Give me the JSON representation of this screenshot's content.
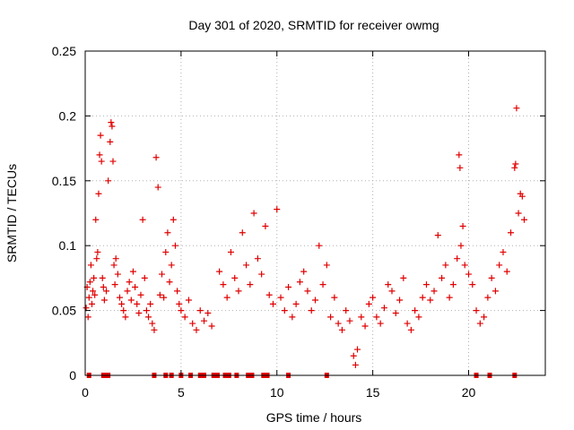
{
  "chart_data": {
    "type": "scatter",
    "title": "Day 301 of 2020, SRMTID for receiver owmg",
    "xlabel": "GPS time / hours",
    "ylabel": "SRMTID / TECUs",
    "xlim": [
      0,
      24
    ],
    "ylim": [
      0,
      0.25
    ],
    "xticks": [
      0,
      5,
      10,
      15,
      20
    ],
    "xtick_labels": [
      "0",
      "5",
      "10",
      "15",
      "20"
    ],
    "yticks": [
      0,
      0.05,
      0.1,
      0.15,
      0.2,
      0.25
    ],
    "ytick_labels": [
      "0",
      "0.05",
      "0.1",
      "0.15",
      "0.2",
      "0.25"
    ],
    "grid": true,
    "marker": "+",
    "marker_color": "#e00000",
    "series": [
      {
        "name": "SRMTID",
        "points": [
          [
            0.05,
            0.052
          ],
          [
            0.1,
            0.068
          ],
          [
            0.15,
            0.045
          ],
          [
            0.2,
            0.06
          ],
          [
            0.25,
            0.072
          ],
          [
            0.3,
            0.085
          ],
          [
            0.35,
            0.055
          ],
          [
            0.4,
            0.065
          ],
          [
            0.45,
            0.075
          ],
          [
            0.5,
            0.062
          ],
          [
            0.55,
            0.12
          ],
          [
            0.6,
            0.09
          ],
          [
            0.65,
            0.095
          ],
          [
            0.7,
            0.14
          ],
          [
            0.75,
            0.17
          ],
          [
            0.8,
            0.185
          ],
          [
            0.85,
            0.165
          ],
          [
            0.9,
            0.075
          ],
          [
            0.95,
            0.068
          ],
          [
            1.0,
            0.058
          ],
          [
            1.1,
            0.065
          ],
          [
            1.2,
            0.15
          ],
          [
            1.3,
            0.18
          ],
          [
            1.35,
            0.195
          ],
          [
            1.4,
            0.192
          ],
          [
            1.45,
            0.165
          ],
          [
            1.5,
            0.085
          ],
          [
            1.55,
            0.07
          ],
          [
            1.6,
            0.09
          ],
          [
            1.7,
            0.078
          ],
          [
            1.8,
            0.06
          ],
          [
            1.9,
            0.055
          ],
          [
            2.0,
            0.05
          ],
          [
            2.1,
            0.045
          ],
          [
            2.2,
            0.065
          ],
          [
            2.3,
            0.072
          ],
          [
            2.4,
            0.058
          ],
          [
            2.5,
            0.08
          ],
          [
            2.6,
            0.068
          ],
          [
            2.7,
            0.055
          ],
          [
            2.8,
            0.048
          ],
          [
            2.9,
            0.062
          ],
          [
            3.0,
            0.12
          ],
          [
            3.1,
            0.075
          ],
          [
            3.2,
            0.05
          ],
          [
            3.3,
            0.045
          ],
          [
            3.4,
            0.055
          ],
          [
            3.5,
            0.04
          ],
          [
            3.6,
            0.035
          ],
          [
            3.7,
            0.168
          ],
          [
            3.8,
            0.145
          ],
          [
            3.9,
            0.062
          ],
          [
            4.0,
            0.078
          ],
          [
            4.1,
            0.06
          ],
          [
            4.2,
            0.095
          ],
          [
            4.3,
            0.11
          ],
          [
            4.4,
            0.072
          ],
          [
            4.5,
            0.085
          ],
          [
            4.6,
            0.12
          ],
          [
            4.7,
            0.1
          ],
          [
            4.8,
            0.065
          ],
          [
            4.9,
            0.055
          ],
          [
            5.0,
            0.05
          ],
          [
            5.2,
            0.045
          ],
          [
            5.4,
            0.058
          ],
          [
            5.6,
            0.04
          ],
          [
            5.8,
            0.035
          ],
          [
            6.0,
            0.05
          ],
          [
            6.2,
            0.042
          ],
          [
            6.4,
            0.048
          ],
          [
            6.6,
            0.038
          ],
          [
            7.0,
            0.08
          ],
          [
            7.2,
            0.07
          ],
          [
            7.4,
            0.06
          ],
          [
            7.6,
            0.095
          ],
          [
            7.8,
            0.075
          ],
          [
            8.0,
            0.065
          ],
          [
            8.2,
            0.11
          ],
          [
            8.4,
            0.085
          ],
          [
            8.6,
            0.07
          ],
          [
            8.8,
            0.125
          ],
          [
            9.0,
            0.09
          ],
          [
            9.2,
            0.078
          ],
          [
            9.4,
            0.115
          ],
          [
            9.6,
            0.062
          ],
          [
            9.8,
            0.055
          ],
          [
            10.0,
            0.128
          ],
          [
            10.2,
            0.06
          ],
          [
            10.4,
            0.05
          ],
          [
            10.6,
            0.068
          ],
          [
            10.8,
            0.045
          ],
          [
            11.0,
            0.055
          ],
          [
            11.2,
            0.072
          ],
          [
            11.4,
            0.08
          ],
          [
            11.6,
            0.065
          ],
          [
            11.8,
            0.05
          ],
          [
            12.0,
            0.058
          ],
          [
            12.2,
            0.1
          ],
          [
            12.4,
            0.07
          ],
          [
            12.6,
            0.085
          ],
          [
            12.8,
            0.045
          ],
          [
            13.0,
            0.06
          ],
          [
            13.2,
            0.04
          ],
          [
            13.4,
            0.035
          ],
          [
            13.6,
            0.05
          ],
          [
            13.8,
            0.042
          ],
          [
            14.0,
            0.015
          ],
          [
            14.1,
            0.008
          ],
          [
            14.2,
            0.02
          ],
          [
            14.4,
            0.045
          ],
          [
            14.6,
            0.038
          ],
          [
            14.8,
            0.055
          ],
          [
            15.0,
            0.06
          ],
          [
            15.2,
            0.045
          ],
          [
            15.4,
            0.04
          ],
          [
            15.6,
            0.052
          ],
          [
            15.8,
            0.07
          ],
          [
            16.0,
            0.065
          ],
          [
            16.2,
            0.048
          ],
          [
            16.4,
            0.058
          ],
          [
            16.6,
            0.075
          ],
          [
            16.8,
            0.04
          ],
          [
            17.0,
            0.035
          ],
          [
            17.2,
            0.05
          ],
          [
            17.4,
            0.045
          ],
          [
            17.6,
            0.06
          ],
          [
            17.8,
            0.07
          ],
          [
            18.0,
            0.058
          ],
          [
            18.2,
            0.065
          ],
          [
            18.4,
            0.108
          ],
          [
            18.6,
            0.075
          ],
          [
            18.8,
            0.085
          ],
          [
            19.0,
            0.06
          ],
          [
            19.2,
            0.07
          ],
          [
            19.4,
            0.09
          ],
          [
            19.5,
            0.17
          ],
          [
            19.55,
            0.16
          ],
          [
            19.6,
            0.1
          ],
          [
            19.7,
            0.115
          ],
          [
            19.8,
            0.085
          ],
          [
            20.0,
            0.078
          ],
          [
            20.2,
            0.07
          ],
          [
            20.4,
            0.05
          ],
          [
            20.6,
            0.04
          ],
          [
            20.8,
            0.045
          ],
          [
            21.0,
            0.06
          ],
          [
            21.2,
            0.075
          ],
          [
            21.4,
            0.065
          ],
          [
            21.6,
            0.085
          ],
          [
            21.8,
            0.095
          ],
          [
            22.0,
            0.08
          ],
          [
            22.2,
            0.11
          ],
          [
            22.4,
            0.16
          ],
          [
            22.45,
            0.163
          ],
          [
            22.5,
            0.206
          ],
          [
            22.6,
            0.125
          ],
          [
            22.7,
            0.14
          ],
          [
            22.8,
            0.138
          ],
          [
            22.9,
            0.12
          ]
        ],
        "zero_points": [
          0.2,
          0.95,
          1.1,
          1.2,
          3.6,
          4.2,
          4.5,
          5.0,
          5.5,
          6.0,
          6.1,
          6.2,
          6.7,
          6.9,
          7.3,
          7.5,
          7.9,
          8.5,
          8.7,
          9.3,
          9.4,
          9.5,
          10.6,
          12.6,
          20.4,
          21.1,
          22.4
        ]
      }
    ]
  }
}
